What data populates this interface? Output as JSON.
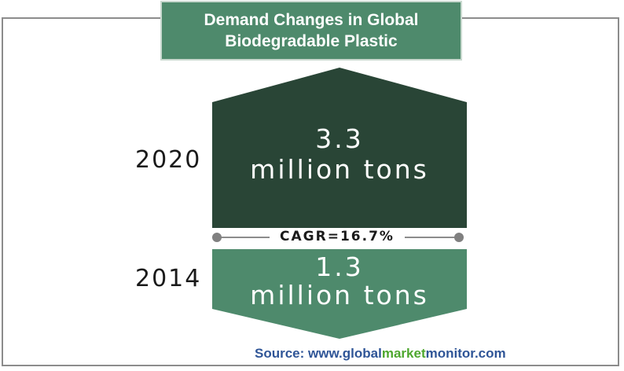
{
  "title": {
    "line1": "Demand Changes in Global",
    "line2": "Biodegradable Plastic"
  },
  "items": [
    {
      "year": "2020",
      "value": "3.3",
      "unit": "million tons",
      "color": "#294536"
    },
    {
      "year": "2014",
      "value": "1.3",
      "unit": "million tons",
      "color": "#4e8a6c"
    }
  ],
  "cagr": "CAGR=16.7%",
  "source": {
    "prefix": "Source: www.",
    "part1": "global",
    "part2": "market",
    "part3": "monitor",
    "suffix": ".com"
  },
  "colors": {
    "title_bg": "#4e8a6c",
    "source_text": "#2f5597",
    "source_highlight": "#4ea72e"
  }
}
